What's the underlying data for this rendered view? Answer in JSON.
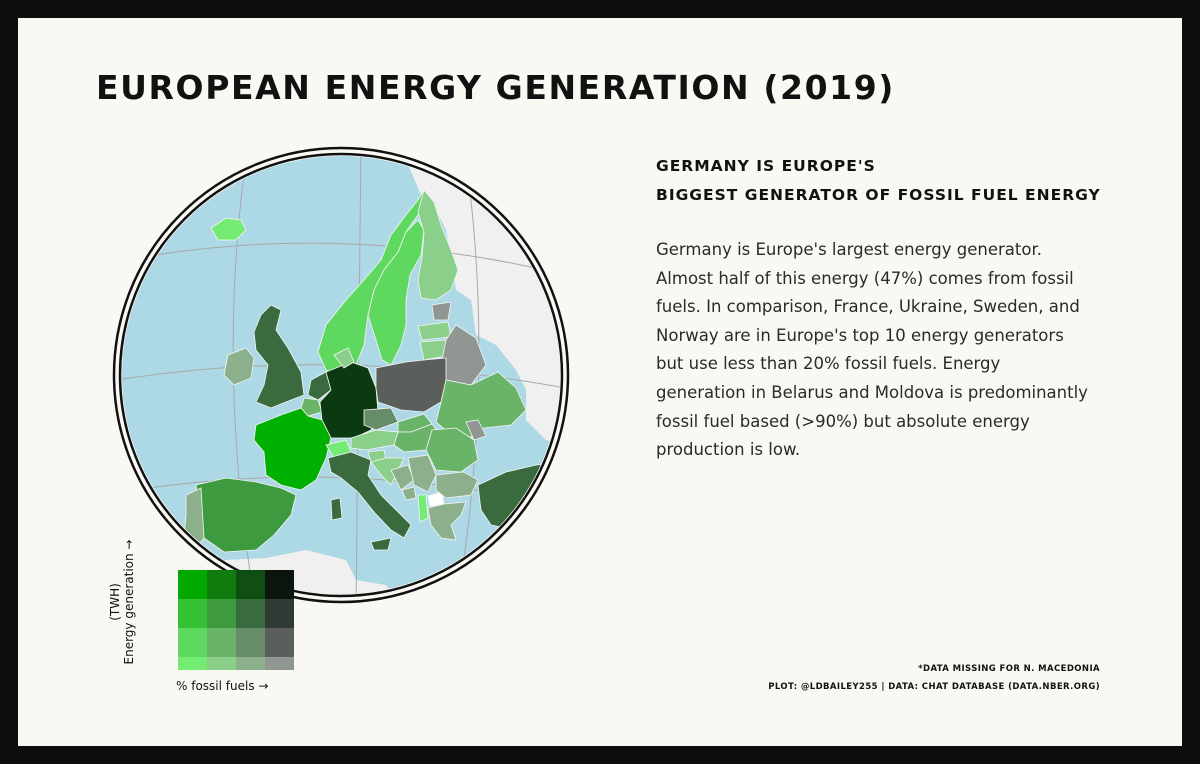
{
  "title": "EUROPEAN ENERGY GENERATION (2019)",
  "subtitle": {
    "line1": "GERMANY IS EUROPE'S",
    "line2": "BIGGEST GENERATOR OF FOSSIL FUEL ENERGY"
  },
  "description": [
    "Germany is Europe's largest energy generator.",
    "Almost half of this energy (47%) comes from fossil",
    "fuels. In comparison, France, Ukraine, Sweden, and",
    "Norway are in Europe's top 10 energy generators",
    "but use less than 20% fossil fuels. Energy",
    "generation in Belarus and Moldova is predominantly",
    "fossil fuel based (>90%) but absolute energy",
    "production is low."
  ],
  "legend": {
    "y_label_line1": "(TWH)",
    "y_label_line2": "Energy generation →",
    "x_label": "% fossil fuels →",
    "grid_colors": [
      [
        "#00a800",
        "#0e7d0e",
        "#0f4f14",
        "#0b140d"
      ],
      [
        "#34c234",
        "#3e9a3e",
        "#3a6b3e",
        "#2f3a34"
      ],
      [
        "#5ed85e",
        "#6ab46a",
        "#668c68",
        "#5a5f5c"
      ],
      [
        "#74ec74",
        "#8ad08a",
        "#8cb08c",
        "#909692"
      ]
    ]
  },
  "notes": {
    "line1": "*DATA MISSING FOR N. MACEDONIA",
    "line2": "PLOT: @LDBAILEY255 | DATA: CHAT DATABASE (DATA.NBER.ORG)"
  },
  "colors": {
    "sea": "#add8e6",
    "non_europe_land": "#f0f0f0",
    "background": "#faf8f3",
    "frame": "#0d0d0d"
  },
  "countries": [
    {
      "name": "Iceland",
      "color": "#74ec74"
    },
    {
      "name": "Norway",
      "color": "#5ed85e"
    },
    {
      "name": "Sweden",
      "color": "#5ed85e"
    },
    {
      "name": "Finland",
      "color": "#8ad08a"
    },
    {
      "name": "Estonia",
      "color": "#909692"
    },
    {
      "name": "Latvia",
      "color": "#8ad08a"
    },
    {
      "name": "Lithuania",
      "color": "#8ad08a"
    },
    {
      "name": "Belarus",
      "color": "#909692"
    },
    {
      "name": "United Kingdom",
      "color": "#3a6b3e"
    },
    {
      "name": "Ireland",
      "color": "#8cb08c"
    },
    {
      "name": "Netherlands",
      "color": "#3a6b3e"
    },
    {
      "name": "Belgium",
      "color": "#6ab46a"
    },
    {
      "name": "Germany",
      "color": "#0b3a10"
    },
    {
      "name": "Poland",
      "color": "#5a5f5c"
    },
    {
      "name": "Ukraine",
      "color": "#6ab46a"
    },
    {
      "name": "Moldova",
      "color": "#909692"
    },
    {
      "name": "France",
      "color": "#00b000"
    },
    {
      "name": "Switzerland",
      "color": "#74ec74"
    },
    {
      "name": "Czechia",
      "color": "#668c68"
    },
    {
      "name": "Austria",
      "color": "#8ad08a"
    },
    {
      "name": "Slovakia",
      "color": "#6ab46a"
    },
    {
      "name": "Hungary",
      "color": "#6ab46a"
    },
    {
      "name": "Romania",
      "color": "#6ab46a"
    },
    {
      "name": "Italy",
      "color": "#3a6b3e"
    },
    {
      "name": "Spain",
      "color": "#3e9a3e"
    },
    {
      "name": "Portugal",
      "color": "#8cb08c"
    },
    {
      "name": "Slovenia",
      "color": "#8ad08a"
    },
    {
      "name": "Croatia",
      "color": "#8ad08a"
    },
    {
      "name": "Bosnia and Herzegovina",
      "color": "#8cb08c"
    },
    {
      "name": "Serbia",
      "color": "#8cb08c"
    },
    {
      "name": "Montenegro",
      "color": "#8cb08c"
    },
    {
      "name": "Albania",
      "color": "#74ec74"
    },
    {
      "name": "North Macedonia",
      "color": "#ffffff"
    },
    {
      "name": "Bulgaria",
      "color": "#8cb08c"
    },
    {
      "name": "Greece",
      "color": "#8cb08c"
    },
    {
      "name": "Turkey",
      "color": "#3a6b3e"
    },
    {
      "name": "Denmark",
      "color": "#8ad08a"
    }
  ]
}
